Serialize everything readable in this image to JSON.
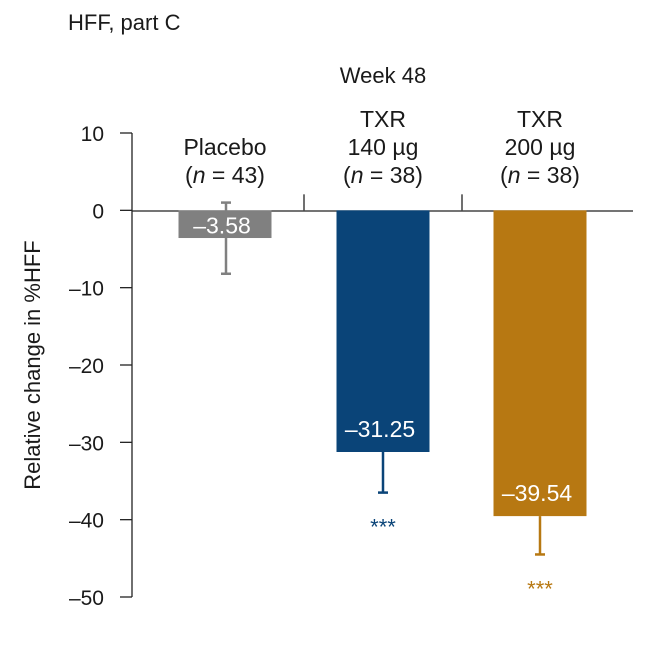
{
  "chart_data": {
    "type": "bar",
    "panel_title": "HFF, part C",
    "group_label": "Week 48",
    "ylabel": "Relative change in %HFF",
    "ylim": [
      -50,
      10
    ],
    "yticks": [
      10,
      0,
      -10,
      -20,
      -30,
      -40,
      -50
    ],
    "ytick_labels": [
      "10",
      "0",
      "–10",
      "–20",
      "–30",
      "–40",
      "–50"
    ],
    "categories": [
      {
        "lines": [
          "Placebo"
        ],
        "n_prefix": "(",
        "n_italic": "n",
        "n_suffix": " = 43)"
      },
      {
        "lines": [
          "TXR",
          "140 µg"
        ],
        "n_prefix": "(",
        "n_italic": "n",
        "n_suffix": " = 38)"
      },
      {
        "lines": [
          "TXR",
          "200 µg"
        ],
        "n_prefix": "(",
        "n_italic": "n",
        "n_suffix": " = 38)"
      }
    ],
    "values": [
      -3.58,
      -31.25,
      -39.54
    ],
    "value_labels": [
      "–3.58",
      "–31.25",
      "–39.54"
    ],
    "error_low": [
      -8.2,
      -36.5,
      -44.5
    ],
    "error_high": [
      1.0,
      null,
      null
    ],
    "significance": [
      "",
      "***",
      "***"
    ],
    "colors": [
      "#808080",
      "#0a4478",
      "#b77812"
    ],
    "grid": false
  }
}
